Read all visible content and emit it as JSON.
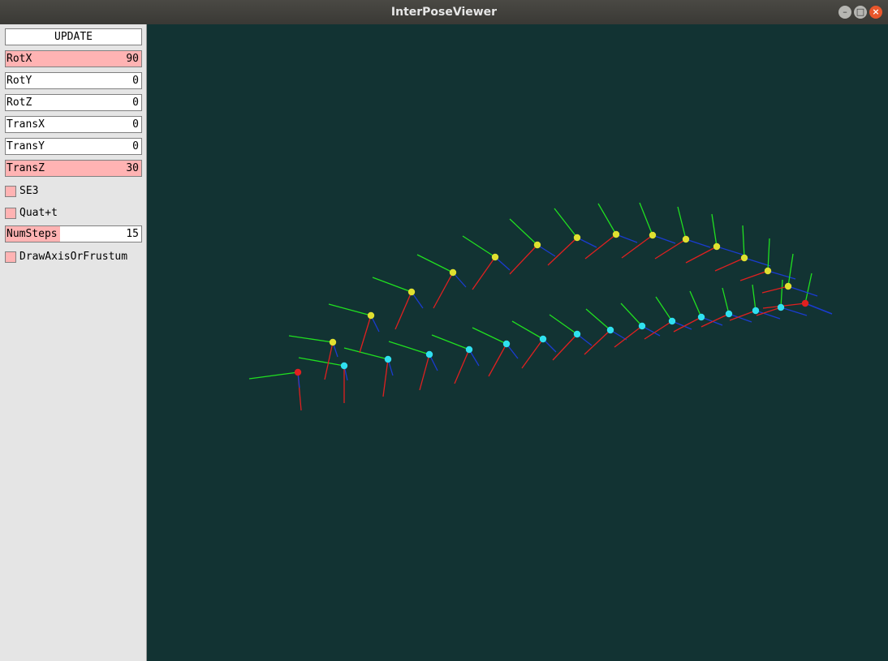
{
  "window": {
    "title": "InterPoseViewer",
    "controls": {
      "minimize_icon": "minimize-icon",
      "maximize_icon": "maximize-icon",
      "close_icon": "close-icon"
    }
  },
  "panel": {
    "update_label": "UPDATE",
    "rotx": {
      "label": "RotX",
      "value": "90",
      "fill_fraction": 1.0
    },
    "roty": {
      "label": "RotY",
      "value": "0",
      "fill_fraction": 0
    },
    "rotz": {
      "label": "RotZ",
      "value": "0",
      "fill_fraction": 0
    },
    "transx": {
      "label": "TransX",
      "value": "0",
      "fill_fraction": 0
    },
    "transy": {
      "label": "TransY",
      "value": "0",
      "fill_fraction": 0
    },
    "transz": {
      "label": "TransZ",
      "value": "30",
      "fill_fraction": 1.0
    },
    "se3": {
      "label": "SE3",
      "checked": false
    },
    "quat": {
      "label": "Quat+t",
      "checked": false
    },
    "numsteps": {
      "label": "NumSteps",
      "value": "15",
      "fill_fraction": 0.4
    },
    "draw_axis": {
      "label": "DrawAxisOrFrustum",
      "checked": false
    }
  },
  "colors": {
    "background": "#123333",
    "slider_fill": "#ffb3b3",
    "axis_x": "#e02020",
    "axis_y": "#20e020",
    "axis_z": "#1a3cd0",
    "endpoint": "#e02020",
    "path_a": "#e0e030",
    "path_b": "#30e0f0"
  }
}
